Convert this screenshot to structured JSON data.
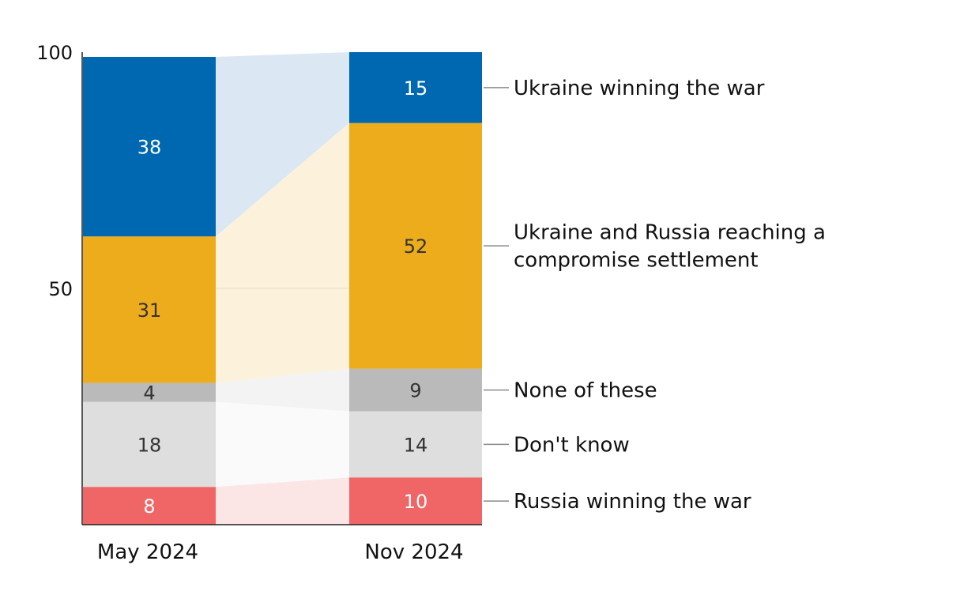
{
  "chart_data": {
    "type": "bar",
    "stacked": true,
    "categories": [
      "May 2024",
      "Nov 2024"
    ],
    "ylim": [
      0,
      100
    ],
    "yticks": [
      100,
      50
    ],
    "series": [
      {
        "name": "Russia winning the war",
        "values": [
          8,
          10
        ],
        "color": "#f06565",
        "band": "#fce5e5",
        "label_color": "#ffffff"
      },
      {
        "name": "Don't know",
        "values": [
          18,
          14
        ],
        "color": "#dedede",
        "band": "#fafafa",
        "label_color": "#333333"
      },
      {
        "name": "None of these",
        "values": [
          4,
          9
        ],
        "color": "#bababa",
        "band": "#f3f3f3",
        "label_color": "#333333"
      },
      {
        "name": "Ukraine and Russia reaching a compromise settlement",
        "legend_lines": [
          "Ukraine and Russia reaching a",
          "compromise settlement"
        ],
        "values": [
          31,
          52
        ],
        "color": "#edac1c",
        "band": "#fcf2dc",
        "label_color": "#333333"
      },
      {
        "name": "Ukraine winning the war",
        "values": [
          38,
          15
        ],
        "color": "#0068b1",
        "band": "#dbe8f4",
        "label_color": "#ffffff"
      }
    ]
  }
}
